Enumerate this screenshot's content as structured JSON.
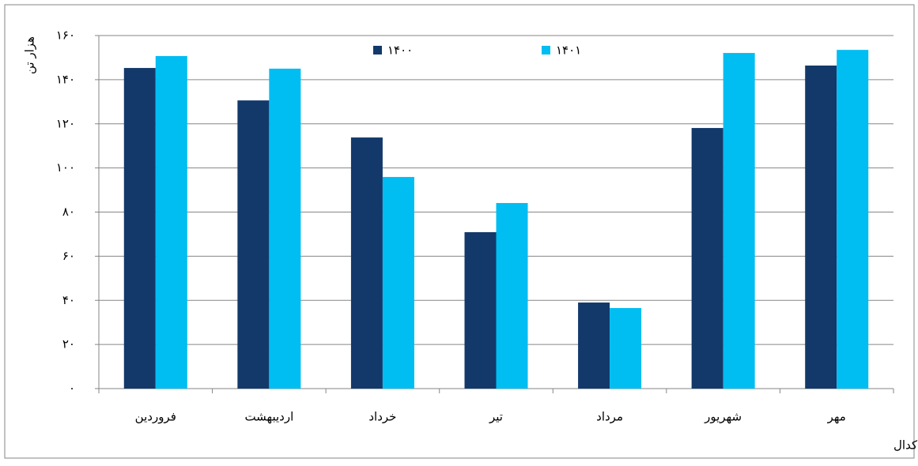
{
  "chart_data": {
    "type": "bar",
    "y_label": "هزار تن",
    "source": "منبع: کدال",
    "categories": [
      "فروردین",
      "اردیبهشت",
      "خرداد",
      "تیر",
      "مرداد",
      "شهریور",
      "مهر"
    ],
    "series": [
      {
        "name": "۱۴۰۰",
        "color": "#13396b",
        "values": [
          145.3,
          130.6,
          113.8,
          70.9,
          39.0,
          118.1,
          146.4
        ]
      },
      {
        "name": "۱۴۰۱",
        "color": "#00bdf2",
        "values": [
          150.7,
          145.0,
          95.9,
          84.1,
          36.5,
          152.1,
          153.5
        ]
      }
    ],
    "ylim": [
      0,
      160
    ],
    "yticks": [
      {
        "value": 0,
        "label": "۰"
      },
      {
        "value": 20,
        "label": "۲۰"
      },
      {
        "value": 40,
        "label": "۴۰"
      },
      {
        "value": 60,
        "label": "۶۰"
      },
      {
        "value": 80,
        "label": "۸۰"
      },
      {
        "value": 100,
        "label": "۱۰۰"
      },
      {
        "value": 120,
        "label": "۱۲۰"
      },
      {
        "value": 140,
        "label": "۱۴۰"
      },
      {
        "value": 160,
        "label": "۱۶۰"
      }
    ],
    "grid": true
  }
}
